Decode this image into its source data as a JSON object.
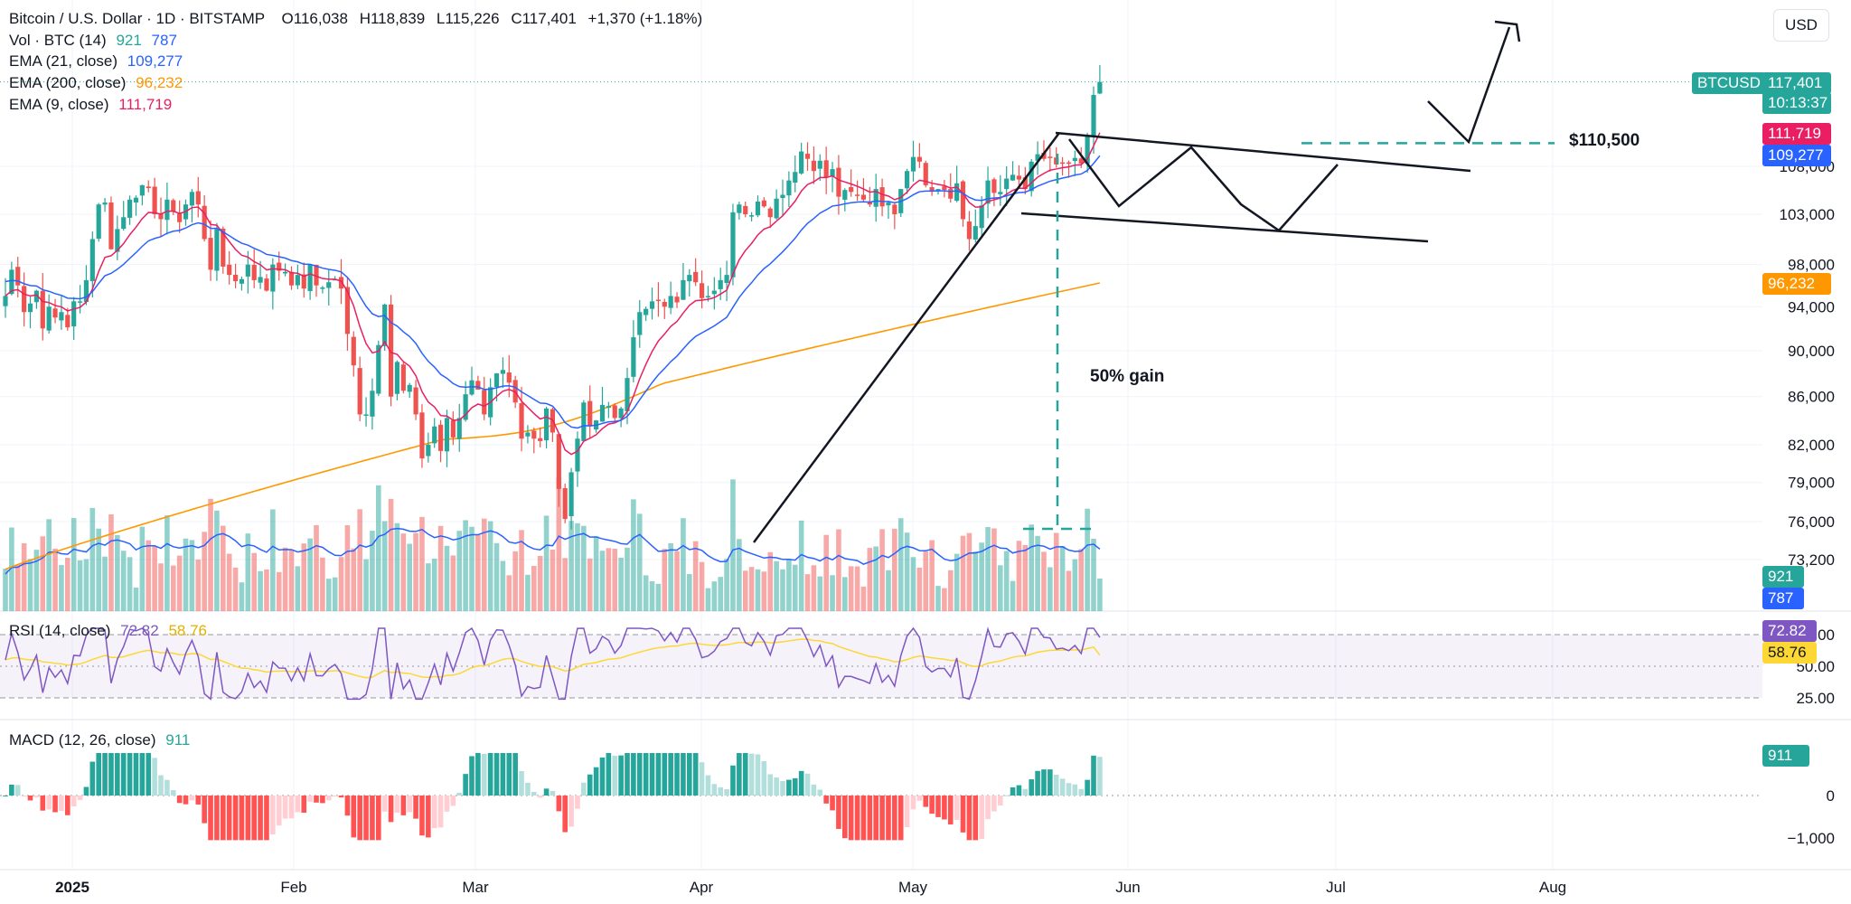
{
  "header": {
    "symbol": "Bitcoin / U.S. Dollar · 1D · BITSTAMP",
    "open_label": "O",
    "open": "116,038",
    "high_label": "H",
    "high": "118,839",
    "low_label": "L",
    "low": "115,226",
    "close_label": "C",
    "close": "117,401",
    "change": "+1,370 (+1.18%)",
    "currency": "USD"
  },
  "legend": {
    "vol_label": "Vol · BTC (14)",
    "vol_value": "921",
    "vol_ma": "787",
    "ema21_label": "EMA (21, close)",
    "ema21_value": "109,277",
    "ema200_label": "EMA (200, close)",
    "ema200_value": "96,232",
    "ema9_label": "EMA (9, close)",
    "ema9_value": "111,719",
    "rsi_label": "RSI (14, close)",
    "rsi_value": "72.82",
    "rsi_ma": "58.76",
    "macd_label": "MACD (12, 26, close)",
    "macd_value": "911"
  },
  "price_tags": {
    "symbol_tag": "BTCUSD",
    "last_price": "117,401",
    "countdown": "10:13:37",
    "ema9": "111,719",
    "ema21": "109,277",
    "ema200": "96,232",
    "vol": "921",
    "vol_ma": "787",
    "rsi": "72.82",
    "rsi_ma": "58.76",
    "macd": "911"
  },
  "annotations": {
    "resistance_label": "$110,500",
    "gain_label": "50% gain"
  },
  "colors": {
    "up": "#26a69a",
    "down": "#ef5350",
    "ema9": "#e91e63",
    "ema21": "#2962ff",
    "ema200": "#ff9800",
    "rsi": "#7e57c2",
    "rsi_ma": "#fdd835"
  },
  "chart_data": {
    "type": "candlestick",
    "title": "Bitcoin / U.S. Dollar · 1D · BITSTAMP",
    "x_labels": [
      "2025",
      "Feb",
      "Mar",
      "Apr",
      "May",
      "Jun",
      "Jul",
      "Aug"
    ],
    "price_scale": "log",
    "price_ticks": [
      73200,
      76000,
      79000,
      82000,
      86000,
      90000,
      94000,
      98000,
      103000,
      108000
    ],
    "rsi_ticks": [
      25,
      50,
      75
    ],
    "macd_ticks": [
      0,
      -1000
    ],
    "closes": [
      95000,
      97500,
      96000,
      93500,
      94300,
      95500,
      92000,
      94000,
      93000,
      93500,
      92100,
      94500,
      94500,
      96500,
      100500,
      104000,
      104200,
      99500,
      101500,
      102700,
      104500,
      104700,
      106000,
      105700,
      103000,
      102500,
      104500,
      103300,
      102200,
      104000,
      105300,
      104000,
      100500,
      97500,
      101500,
      97800,
      97000,
      96400,
      96600,
      98000,
      96500,
      96800,
      95500,
      98000,
      97400,
      97300,
      96000,
      97000,
      95700,
      98000,
      96000,
      95800,
      96300,
      96600,
      95700,
      91500,
      88700,
      84500,
      84500,
      86500,
      90500,
      94200,
      86000,
      89000,
      86500,
      87000,
      84500,
      80900,
      82000,
      83500,
      81500,
      84200,
      82600,
      84200,
      86200,
      87400,
      86600,
      84500,
      86800,
      88000,
      88300,
      87200,
      85500,
      82500,
      83000,
      82500,
      82300,
      85000,
      83000,
      78500,
      76200,
      79800,
      82500,
      85500,
      83500,
      84000,
      85300,
      85200,
      84200,
      85000,
      87600,
      91200,
      93500,
      93800,
      94500,
      94600,
      94000,
      95000,
      94400,
      96500,
      97000,
      96300,
      94800,
      95000,
      95500,
      96500,
      97000,
      103200,
      104000,
      103000,
      102900,
      104300,
      103800,
      102700,
      104600,
      105000,
      106500,
      107400,
      109600,
      108800,
      107500,
      108600,
      106800,
      107700,
      104800,
      105500,
      105300,
      104900,
      104500,
      104000,
      105600,
      103800,
      104200,
      103000,
      105600,
      107500,
      109000,
      108500,
      106000,
      105400,
      105600,
      105500,
      104600,
      106200,
      102500,
      100500,
      101800,
      103900,
      106500,
      105200,
      105300,
      106700,
      107100,
      106600,
      105600,
      108500,
      109300,
      108800,
      109000,
      108200,
      108400,
      108300,
      108900,
      108300,
      111300,
      115900,
      117401
    ],
    "ema200_range": [
      72500,
      96232
    ],
    "last_values": {
      "ema9": 111719,
      "ema21": 109277,
      "ema200": 96232,
      "volume": 921,
      "volume_ma": 787,
      "rsi": 72.82,
      "rsi_ma": 58.76,
      "macd_hist": 911
    },
    "resistance_level": 110500,
    "gain_percent": 50
  }
}
